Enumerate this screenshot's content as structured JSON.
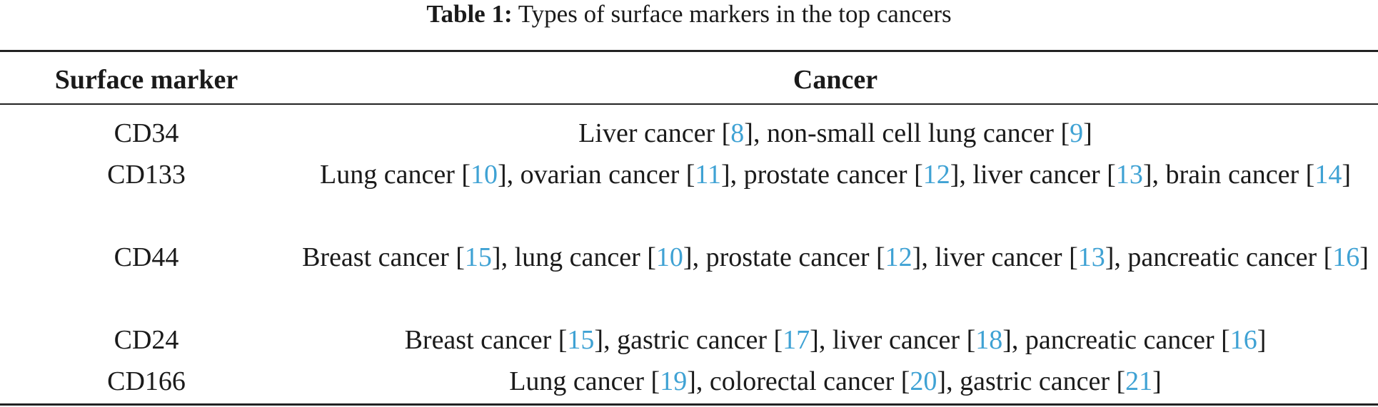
{
  "caption": {
    "label": "Table 1:",
    "text": " Types of surface markers in the top cancers"
  },
  "columns": {
    "marker": "Surface marker",
    "cancer": "Cancer"
  },
  "rows": [
    {
      "marker": "CD34",
      "items": [
        {
          "name": "Liver cancer",
          "ref": "8"
        },
        {
          "name": "non-small cell lung cancer",
          "ref": "9"
        }
      ]
    },
    {
      "marker": "CD133",
      "items": [
        {
          "name": "Lung cancer",
          "ref": "10"
        },
        {
          "name": "ovarian cancer",
          "ref": "11"
        },
        {
          "name": "prostate cancer",
          "ref": "12"
        },
        {
          "name": "liver cancer",
          "ref": "13"
        },
        {
          "name": "brain cancer",
          "ref": "14"
        }
      ]
    },
    {
      "marker": "CD44",
      "items": [
        {
          "name": "Breast cancer",
          "ref": "15"
        },
        {
          "name": "lung cancer",
          "ref": "10"
        },
        {
          "name": "prostate cancer",
          "ref": "12"
        },
        {
          "name": "liver cancer",
          "ref": "13"
        },
        {
          "name": "pancreatic cancer",
          "ref": "16"
        }
      ]
    },
    {
      "marker": "CD24",
      "items": [
        {
          "name": "Breast cancer",
          "ref": "15"
        },
        {
          "name": "gastric cancer",
          "ref": "17"
        },
        {
          "name": "liver cancer",
          "ref": "18"
        },
        {
          "name": "pancreatic cancer",
          "ref": "16"
        }
      ]
    },
    {
      "marker": "CD166",
      "items": [
        {
          "name": "Lung cancer",
          "ref": "19"
        },
        {
          "name": "colorectal cancer",
          "ref": "20"
        },
        {
          "name": "gastric cancer",
          "ref": "21"
        }
      ]
    }
  ]
}
